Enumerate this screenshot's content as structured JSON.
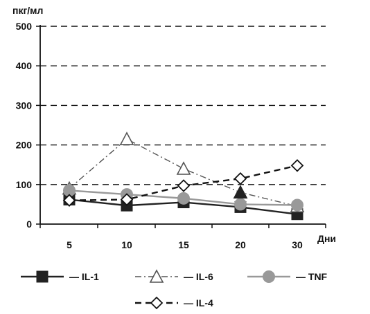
{
  "chart_data": {
    "type": "line",
    "ylabel": "пкг/мл",
    "xlabel": "Дни",
    "categories": [
      "5",
      "10",
      "15",
      "20",
      "30"
    ],
    "yticks": [
      "0",
      "100",
      "200",
      "300",
      "400",
      "500"
    ],
    "ylim": [
      0,
      500
    ],
    "grid": "horizontal dashed",
    "legend": "bottom",
    "series": [
      {
        "name": "IL-1",
        "values": [
          62,
          47,
          55,
          43,
          25
        ],
        "color": "#222222",
        "marker": "filled-square",
        "line": "solid"
      },
      {
        "name": "IL-6",
        "values": [
          90,
          215,
          140,
          80,
          45
        ],
        "color": "#555555",
        "marker": "open-triangle",
        "line": "dash-dot"
      },
      {
        "name": "TNF",
        "values": [
          85,
          75,
          65,
          50,
          48
        ],
        "color": "#999999",
        "marker": "filled-circle",
        "line": "solid"
      },
      {
        "name": "IL-4",
        "values": [
          60,
          62,
          97,
          115,
          148
        ],
        "color": "#111111",
        "marker": "open-diamond",
        "line": "dashed"
      }
    ],
    "legend_labels": [
      "— IL-1",
      "— IL-6",
      "— TNF",
      "— IL-4"
    ],
    "extra_marker": {
      "series": "IL-6",
      "x": "20",
      "y": 80,
      "marker": "filled-triangle"
    }
  }
}
